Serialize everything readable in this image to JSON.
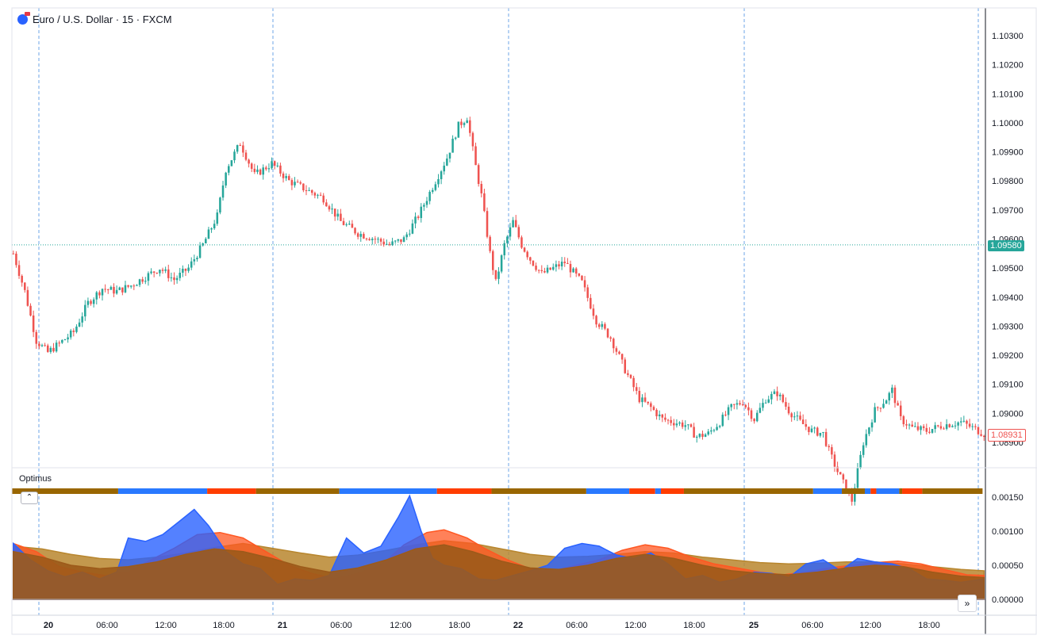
{
  "header": {
    "symbol_title": "Euro / U.S. Dollar · 15 · FXCM"
  },
  "indicator": {
    "name": "Optimus",
    "collapse_symbol": "⌃"
  },
  "nav": {
    "scroll_symbol": "»"
  },
  "price_tags": {
    "current": "1.09580",
    "last": "1.08931"
  },
  "colors": {
    "candle_up": "#26a69a",
    "candle_down": "#ef5350",
    "band_brown": "#996600",
    "band_blue": "#2979ff",
    "band_red": "#ff3d00",
    "osc_blue": "#2962ff",
    "osc_red": "#ff5722",
    "osc_brown": "#9c5a1a",
    "osc_tan": "#b8862e",
    "grid_dashed": "#4a90e2",
    "current_price_line": "#26a69a"
  },
  "chart_data": [
    {
      "type": "candlestick",
      "title": "Euro / U.S. Dollar · 15 · FXCM",
      "x_tick_labels": [
        "20",
        "06:00",
        "12:00",
        "18:00",
        "21",
        "06:00",
        "12:00",
        "18:00",
        "22",
        "06:00",
        "12:00",
        "18:00",
        "25",
        "06:00",
        "12:00",
        "18:00"
      ],
      "y_tick_labels": [
        "1.10300",
        "1.10200",
        "1.10100",
        "1.10000",
        "1.09900",
        "1.09800",
        "1.09700",
        "1.09600",
        "1.09500",
        "1.09400",
        "1.09300",
        "1.09200",
        "1.09100",
        "1.09000",
        "1.08900"
      ],
      "ylim": [
        1.0885,
        1.1035
      ],
      "current_price": 1.0958,
      "last_price": 1.08931,
      "close_path": [
        [
          0,
          1.0955
        ],
        [
          4,
          1.0942
        ],
        [
          8,
          1.0925
        ],
        [
          12,
          1.0921
        ],
        [
          16,
          1.0924
        ],
        [
          21,
          1.0928
        ],
        [
          26,
          1.0938
        ],
        [
          31,
          1.0943
        ],
        [
          36,
          1.0942
        ],
        [
          41,
          1.0944
        ],
        [
          46,
          1.0947
        ],
        [
          51,
          1.095
        ],
        [
          56,
          1.0946
        ],
        [
          61,
          1.095
        ],
        [
          66,
          1.0958
        ],
        [
          71,
          1.0968
        ],
        [
          74,
          1.0984
        ],
        [
          79,
          1.0993
        ],
        [
          84,
          1.0982
        ],
        [
          90,
          1.0986
        ],
        [
          96,
          1.098
        ],
        [
          102,
          1.0977
        ],
        [
          108,
          1.0974
        ],
        [
          114,
          1.0966
        ],
        [
          120,
          1.0962
        ],
        [
          126,
          1.096
        ],
        [
          131,
          1.0958
        ],
        [
          136,
          1.096
        ],
        [
          141,
          1.0968
        ],
        [
          146,
          1.0978
        ],
        [
          151,
          1.0988
        ],
        [
          155,
          1.0999
        ],
        [
          158,
          1.1002
        ],
        [
          161,
          1.0985
        ],
        [
          163,
          1.0975
        ],
        [
          166,
          1.0955
        ],
        [
          168,
          1.0945
        ],
        [
          171,
          1.0958
        ],
        [
          174,
          1.0966
        ],
        [
          177,
          1.0958
        ],
        [
          180,
          1.0953
        ],
        [
          184,
          1.0948
        ],
        [
          188,
          1.095
        ],
        [
          192,
          1.0952
        ],
        [
          198,
          1.0945
        ],
        [
          203,
          1.0932
        ],
        [
          208,
          1.0926
        ],
        [
          213,
          1.0915
        ],
        [
          218,
          1.0905
        ],
        [
          222,
          1.0902
        ],
        [
          226,
          1.0898
        ],
        [
          230,
          1.0897
        ],
        [
          234,
          1.0896
        ],
        [
          238,
          1.0892
        ],
        [
          242,
          1.0893
        ],
        [
          246,
          1.0897
        ],
        [
          250,
          1.0902
        ],
        [
          254,
          1.0904
        ],
        [
          258,
          1.0898
        ],
        [
          262,
          1.0905
        ],
        [
          266,
          1.0907
        ],
        [
          270,
          1.0901
        ],
        [
          274,
          1.0897
        ],
        [
          278,
          1.0894
        ],
        [
          282,
          1.0893
        ],
        [
          284,
          1.0887
        ],
        [
          287,
          1.088
        ],
        [
          292,
          1.087
        ],
        [
          296,
          1.089
        ],
        [
          300,
          1.0901
        ],
        [
          304,
          1.0905
        ],
        [
          306,
          1.0908
        ],
        [
          309,
          1.0898
        ],
        [
          313,
          1.0895
        ],
        [
          318,
          1.0894
        ],
        [
          324,
          1.0896
        ],
        [
          330,
          1.0897
        ],
        [
          334,
          1.0895
        ],
        [
          338,
          1.0893
        ]
      ],
      "bars_count": 339
    },
    {
      "type": "area",
      "title": "Optimus",
      "y_tick_labels": [
        "0.00150",
        "0.00100",
        "0.00050",
        "0.00000"
      ],
      "ylim": [
        0,
        0.0017
      ],
      "signal_band_segments": [
        [
          "brown",
          0,
          37
        ],
        [
          "blue",
          37,
          68
        ],
        [
          "red",
          68,
          85
        ],
        [
          "brown",
          85,
          114
        ],
        [
          "blue",
          114,
          148
        ],
        [
          "red",
          148,
          167
        ],
        [
          "brown",
          167,
          200
        ],
        [
          "blue",
          200,
          215
        ],
        [
          "red",
          215,
          224
        ],
        [
          "blue",
          224,
          226
        ],
        [
          "red",
          226,
          234
        ],
        [
          "brown",
          234,
          279
        ],
        [
          "blue",
          279,
          289
        ],
        [
          "brown",
          289,
          297
        ],
        [
          "blue",
          297,
          299
        ],
        [
          "red",
          299,
          301
        ],
        [
          "blue",
          301,
          309
        ],
        [
          "brown",
          309,
          310
        ],
        [
          "red",
          310,
          317
        ],
        [
          "brown",
          317,
          338
        ]
      ],
      "series": [
        {
          "color": "osc_blue",
          "points": [
            [
              0,
              0.00082
            ],
            [
              6,
              0.00058
            ],
            [
              12,
              0.00042
            ],
            [
              18,
              0.00033
            ],
            [
              24,
              0.0004
            ],
            [
              30,
              0.0003
            ],
            [
              36,
              0.0004
            ],
            [
              40,
              0.0009
            ],
            [
              46,
              0.00085
            ],
            [
              52,
              0.00095
            ],
            [
              58,
              0.00115
            ],
            [
              63,
              0.00132
            ],
            [
              68,
              0.00108
            ],
            [
              74,
              0.0007
            ],
            [
              80,
              0.00052
            ],
            [
              86,
              0.00045
            ],
            [
              92,
              0.00022
            ],
            [
              98,
              0.0003
            ],
            [
              104,
              0.00028
            ],
            [
              110,
              0.00035
            ],
            [
              116,
              0.0009
            ],
            [
              122,
              0.00068
            ],
            [
              128,
              0.00078
            ],
            [
              134,
              0.0012
            ],
            [
              138,
              0.00152
            ],
            [
              142,
              0.001
            ],
            [
              146,
              0.0006
            ],
            [
              150,
              0.0005
            ],
            [
              156,
              0.00045
            ],
            [
              162,
              0.0003
            ],
            [
              168,
              0.00028
            ],
            [
              174,
              0.00035
            ],
            [
              180,
              0.00042
            ],
            [
              186,
              0.0005
            ],
            [
              192,
              0.00075
            ],
            [
              198,
              0.00082
            ],
            [
              204,
              0.00078
            ],
            [
              210,
              0.00065
            ],
            [
              216,
              0.0006
            ],
            [
              222,
              0.00068
            ],
            [
              228,
              0.00052
            ],
            [
              234,
              0.0003
            ],
            [
              240,
              0.00035
            ],
            [
              246,
              0.00025
            ],
            [
              252,
              0.0003
            ],
            [
              258,
              0.0004
            ],
            [
              264,
              0.00038
            ],
            [
              270,
              0.00032
            ],
            [
              276,
              0.00052
            ],
            [
              282,
              0.00058
            ],
            [
              288,
              0.00042
            ],
            [
              294,
              0.0006
            ],
            [
              300,
              0.00055
            ],
            [
              306,
              0.00052
            ],
            [
              312,
              0.00045
            ],
            [
              318,
              0.0003
            ],
            [
              324,
              0.00028
            ],
            [
              330,
              0.00025
            ],
            [
              338,
              0.0003
            ]
          ]
        },
        {
          "color": "osc_red",
          "points": [
            [
              0,
              0.00082
            ],
            [
              8,
              0.0007
            ],
            [
              16,
              0.00048
            ],
            [
              24,
              0.0004
            ],
            [
              32,
              0.00035
            ],
            [
              40,
              0.0004
            ],
            [
              48,
              0.00058
            ],
            [
              56,
              0.00075
            ],
            [
              64,
              0.00095
            ],
            [
              72,
              0.00098
            ],
            [
              80,
              0.0009
            ],
            [
              88,
              0.0007
            ],
            [
              96,
              0.0005
            ],
            [
              104,
              0.00038
            ],
            [
              112,
              0.0003
            ],
            [
              120,
              0.00038
            ],
            [
              128,
              0.0005
            ],
            [
              136,
              0.0008
            ],
            [
              144,
              0.00098
            ],
            [
              150,
              0.00102
            ],
            [
              158,
              0.0009
            ],
            [
              164,
              0.00075
            ],
            [
              172,
              0.00058
            ],
            [
              180,
              0.00045
            ],
            [
              188,
              0.00042
            ],
            [
              196,
              0.0005
            ],
            [
              204,
              0.00058
            ],
            [
              212,
              0.00072
            ],
            [
              220,
              0.0008
            ],
            [
              228,
              0.00075
            ],
            [
              236,
              0.00062
            ],
            [
              244,
              0.00052
            ],
            [
              252,
              0.00046
            ],
            [
              260,
              0.0004
            ],
            [
              268,
              0.00036
            ],
            [
              276,
              0.0004
            ],
            [
              284,
              0.00046
            ],
            [
              292,
              0.0005
            ],
            [
              300,
              0.00054
            ],
            [
              308,
              0.00056
            ],
            [
              316,
              0.00052
            ],
            [
              324,
              0.00044
            ],
            [
              332,
              0.00036
            ],
            [
              338,
              0.00035
            ]
          ]
        },
        {
          "color": "osc_tan",
          "points": [
            [
              0,
              0.00078
            ],
            [
              10,
              0.00074
            ],
            [
              20,
              0.00066
            ],
            [
              30,
              0.0006
            ],
            [
              40,
              0.00058
            ],
            [
              50,
              0.00062
            ],
            [
              60,
              0.00068
            ],
            [
              70,
              0.00076
            ],
            [
              80,
              0.00082
            ],
            [
              90,
              0.00075
            ],
            [
              100,
              0.00068
            ],
            [
              110,
              0.00062
            ],
            [
              120,
              0.00065
            ],
            [
              130,
              0.00072
            ],
            [
              140,
              0.0008
            ],
            [
              150,
              0.00086
            ],
            [
              160,
              0.00082
            ],
            [
              170,
              0.00074
            ],
            [
              180,
              0.00066
            ],
            [
              190,
              0.00062
            ],
            [
              200,
              0.00063
            ],
            [
              210,
              0.00066
            ],
            [
              220,
              0.0007
            ],
            [
              230,
              0.00068
            ],
            [
              240,
              0.00062
            ],
            [
              250,
              0.00058
            ],
            [
              260,
              0.00054
            ],
            [
              270,
              0.00052
            ],
            [
              280,
              0.00053
            ],
            [
              290,
              0.00055
            ],
            [
              300,
              0.00055
            ],
            [
              310,
              0.00052
            ],
            [
              320,
              0.00048
            ],
            [
              330,
              0.00044
            ],
            [
              338,
              0.00042
            ]
          ]
        },
        {
          "color": "osc_brown",
          "points": [
            [
              0,
              0.0007
            ],
            [
              10,
              0.00062
            ],
            [
              20,
              0.0005
            ],
            [
              30,
              0.00045
            ],
            [
              40,
              0.00048
            ],
            [
              50,
              0.00055
            ],
            [
              60,
              0.00066
            ],
            [
              70,
              0.00074
            ],
            [
              80,
              0.0007
            ],
            [
              90,
              0.0006
            ],
            [
              100,
              0.00048
            ],
            [
              110,
              0.0004
            ],
            [
              120,
              0.00046
            ],
            [
              130,
              0.00058
            ],
            [
              140,
              0.00074
            ],
            [
              150,
              0.0008
            ],
            [
              160,
              0.0007
            ],
            [
              170,
              0.00056
            ],
            [
              180,
              0.00046
            ],
            [
              190,
              0.00044
            ],
            [
              200,
              0.0005
            ],
            [
              210,
              0.0006
            ],
            [
              220,
              0.00066
            ],
            [
              230,
              0.0006
            ],
            [
              240,
              0.0005
            ],
            [
              250,
              0.00042
            ],
            [
              260,
              0.00038
            ],
            [
              270,
              0.00036
            ],
            [
              280,
              0.0004
            ],
            [
              290,
              0.00046
            ],
            [
              300,
              0.0005
            ],
            [
              310,
              0.00048
            ],
            [
              320,
              0.0004
            ],
            [
              330,
              0.00034
            ],
            [
              338,
              0.00032
            ]
          ]
        }
      ]
    }
  ]
}
